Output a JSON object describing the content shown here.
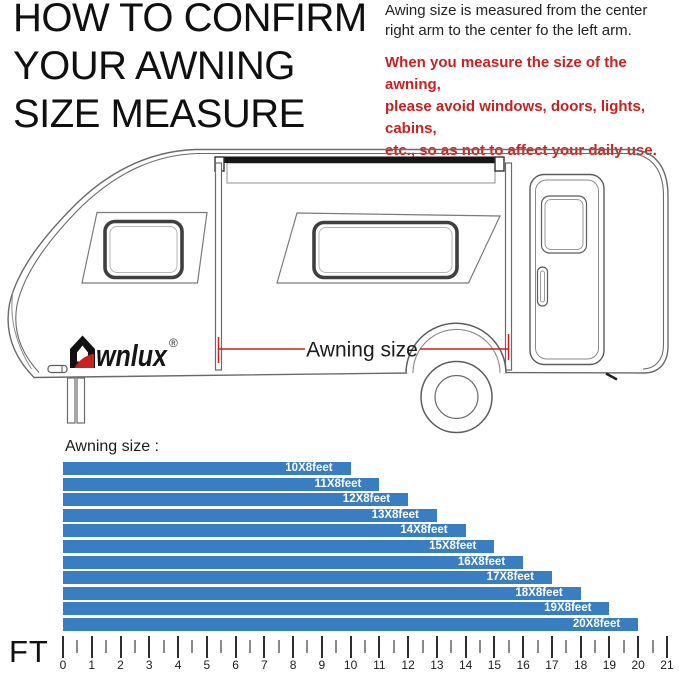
{
  "header": {
    "title": "HOW TO CONFIRM\nYOUR AWNING\nSIZE MEASURE",
    "note_black": "Awing size is measured from the center\nright arm to the center fo the left arm.",
    "note_red": "When you measure the size of the awning,\nplease avoid windows, doors, lights, cabins,\netc., so as not to affect your daily use."
  },
  "diagram": {
    "brand": {
      "name": "Awnlux",
      "text_after_icon": "wnlux",
      "registered_mark": "®"
    },
    "dimension_label": "Awning size",
    "accent_red": "#c82121"
  },
  "chart_data": {
    "type": "bar",
    "orientation": "horizontal",
    "title": "Awning size :",
    "categories": [
      "10X8feet",
      "11X8feet",
      "12X8feet",
      "13X8feet",
      "14X8feet",
      "15X8feet",
      "16X8feet",
      "17X8feet",
      "18X8feet",
      "19X8feet",
      "20X8feet"
    ],
    "values": [
      10,
      11,
      12,
      13,
      14,
      15,
      16,
      17,
      18,
      19,
      20
    ],
    "xlabel": "FT",
    "xlim": [
      0,
      21
    ],
    "x_tick_labels": [
      "0",
      "1",
      "2",
      "3",
      "4",
      "5",
      "6",
      "7",
      "8",
      "9",
      "10",
      "11",
      "12",
      "13",
      "14",
      "15",
      "16",
      "17",
      "18",
      "19",
      "20",
      "21"
    ],
    "minor_tick_step": 0.5,
    "bar_color": "#3a7ec2",
    "bar_label_color": "#ffffff",
    "grid": false,
    "legend": false
  }
}
